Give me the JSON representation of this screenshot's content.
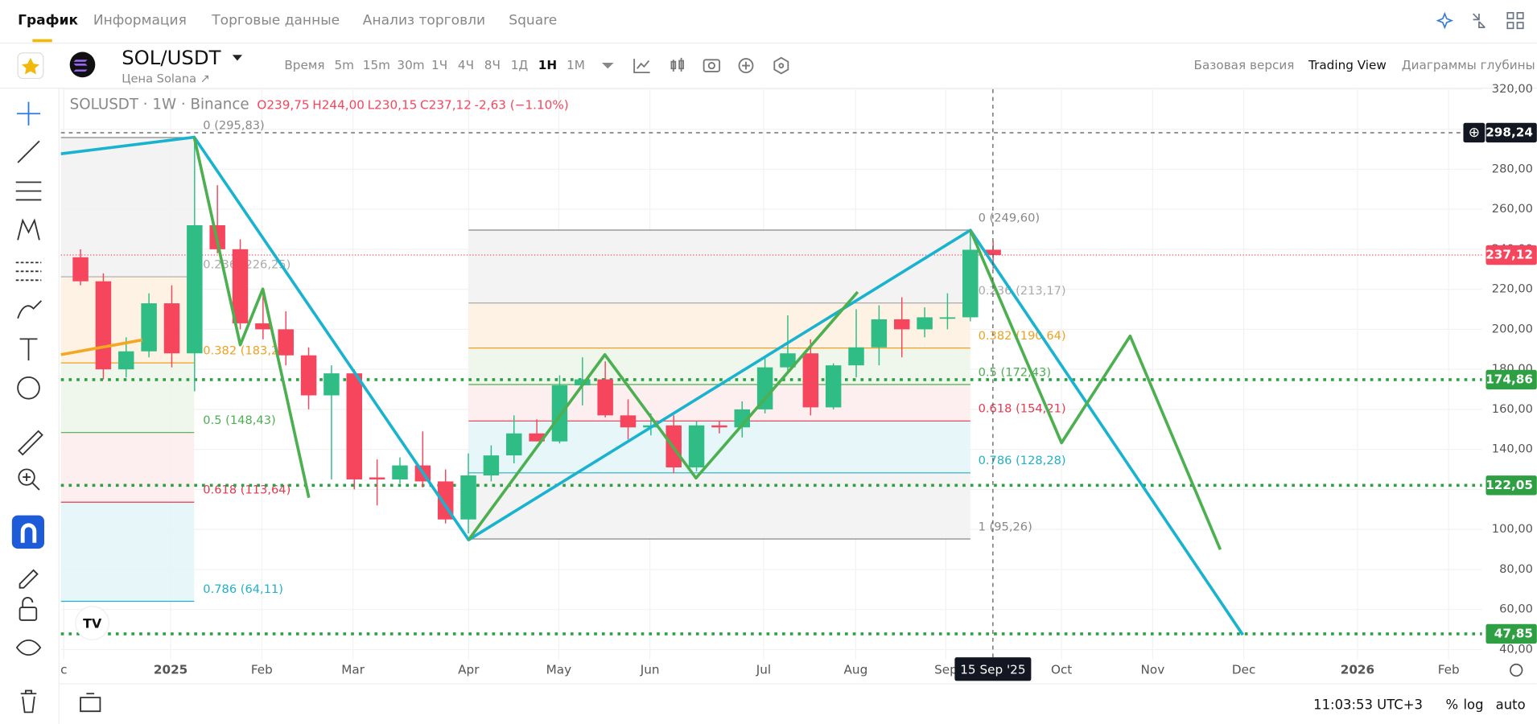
{
  "tabs": [
    "График",
    "Информация",
    "Торговые данные",
    "Анализ торговли",
    "Square"
  ],
  "symbol": {
    "pair": "SOL/USDT",
    "subtitle": "Цена Solana ↗"
  },
  "intervals": [
    "Время",
    "5m",
    "15m",
    "30m",
    "1Ч",
    "4Ч",
    "8Ч",
    "1Д",
    "1Н",
    "1М"
  ],
  "views": [
    "Базовая версия",
    "Trading View",
    "Диаграммы глубины"
  ],
  "chart": {
    "type": "candlestick",
    "legend": {
      "name": "SOLUSDT · 1W · Binance",
      "open": "O239,75",
      "high": "H244,00",
      "low": "L230,15",
      "close": "C237,12",
      "change": "-2,63 (−1.10%)"
    },
    "ylim": [
      40,
      320
    ],
    "yticks": [
      {
        "value": 40,
        "label": "40,00"
      },
      {
        "value": 60,
        "label": "60,00"
      },
      {
        "value": 80,
        "label": "80,00"
      },
      {
        "value": 100,
        "label": "100,00"
      },
      {
        "value": 120,
        "label": "120,00"
      },
      {
        "value": 140,
        "label": "140,00"
      },
      {
        "value": 160,
        "label": "160,00"
      },
      {
        "value": 180,
        "label": "180,00"
      },
      {
        "value": 200,
        "label": "200,00"
      },
      {
        "value": 220,
        "label": "220,00"
      },
      {
        "value": 240,
        "label": "240,00"
      },
      {
        "value": 260,
        "label": "260,00"
      },
      {
        "value": 280,
        "label": "280,00"
      },
      {
        "value": 300,
        "label": "300,00"
      },
      {
        "value": 320,
        "label": "320,00"
      }
    ],
    "xlabels": [
      "c",
      "2025",
      "Feb",
      "Mar",
      "Apr",
      "May",
      "Jun",
      "Jul",
      "Aug",
      "Sep",
      "Oct",
      "Nov",
      "Dec",
      "2026",
      "Feb"
    ],
    "crosshair": {
      "price": {
        "value": 298.24,
        "label": "298,24"
      },
      "date": "15 Sep '25"
    },
    "last_price": {
      "value": 237.12,
      "label": "237,12"
    },
    "levels": [
      {
        "value": 174.86,
        "label": "174,86"
      },
      {
        "value": 122.05,
        "label": "122,05"
      },
      {
        "value": 47.85,
        "label": "47,85"
      }
    ],
    "up_color": "#2fbd85",
    "down_color": "#f6465d",
    "candles": [
      [
        236,
        240,
        222,
        224
      ],
      [
        224,
        228,
        175,
        180
      ],
      [
        180,
        196,
        176,
        189
      ],
      [
        189,
        218,
        186,
        213
      ],
      [
        213,
        222,
        181,
        188
      ],
      [
        188,
        296,
        169,
        252
      ],
      [
        252,
        272,
        238,
        240
      ],
      [
        240,
        245,
        200,
        203
      ],
      [
        203,
        218,
        195,
        200
      ],
      [
        200,
        209,
        182,
        187
      ],
      [
        187,
        191,
        160,
        167
      ],
      [
        167,
        182,
        125,
        178
      ],
      [
        178,
        180,
        120,
        125
      ],
      [
        126,
        135,
        112,
        125
      ],
      [
        125,
        136,
        123,
        132
      ],
      [
        132,
        149,
        121,
        124
      ],
      [
        124,
        130,
        103,
        105
      ],
      [
        105,
        138,
        98,
        127
      ],
      [
        127,
        142,
        124,
        137
      ],
      [
        137,
        157,
        133,
        148
      ],
      [
        148,
        155,
        144,
        144
      ],
      [
        144,
        177,
        143,
        172
      ],
      [
        172,
        186,
        162,
        175
      ],
      [
        175,
        184,
        156,
        157
      ],
      [
        157,
        165,
        145,
        151
      ],
      [
        151,
        158,
        147,
        152
      ],
      [
        152,
        157,
        128,
        131
      ],
      [
        131,
        154,
        129,
        152
      ],
      [
        152,
        154,
        148,
        151
      ],
      [
        151,
        164,
        146,
        160
      ],
      [
        160,
        186,
        158,
        181
      ],
      [
        181,
        207,
        179,
        188
      ],
      [
        188,
        195,
        157,
        161
      ],
      [
        161,
        183,
        160,
        182
      ],
      [
        182,
        210,
        176,
        191
      ],
      [
        191,
        212,
        182,
        205
      ],
      [
        205,
        216,
        186,
        200
      ],
      [
        200,
        211,
        196,
        206
      ],
      [
        206,
        218,
        200,
        206
      ],
      [
        206,
        250,
        204,
        239.75
      ],
      [
        239.75,
        244,
        230.15,
        237.12
      ]
    ],
    "fib_left": [
      {
        "label": "0 (295,83)",
        "value": 295.83,
        "color": "#888888",
        "zone": "#f2f2f2"
      },
      {
        "label": "0.236 (226,25)",
        "value": 226.25,
        "color": "#aaaaaa",
        "zone": "#fdf1e0"
      },
      {
        "label": "0.382 (183,22)",
        "value": 183.22,
        "color": "#f0a020",
        "zone": "#edf6ea"
      },
      {
        "label": "0.5 (148,43)",
        "value": 148.43,
        "color": "#4caf50",
        "zone": "#fdecee"
      },
      {
        "label": "0.618 (113,64)",
        "value": 113.64,
        "color": "#e53950",
        "zone": "#e4f5f8"
      },
      {
        "label": "0.786 (64,11)",
        "value": 64.11,
        "color": "#22b0c8",
        "zone": "#f2f2f2"
      }
    ],
    "fib_right": [
      {
        "label": "0 (249,60)",
        "value": 249.6,
        "color": "#888888",
        "zone": "#f2f2f2"
      },
      {
        "label": "0.236 (213,17)",
        "value": 213.17,
        "color": "#aaaaaa",
        "zone": "#fdf1e0"
      },
      {
        "label": "0.382 (190,64)",
        "value": 190.64,
        "color": "#f0a020",
        "zone": "#edf6ea"
      },
      {
        "label": "0.5 (172,43)",
        "value": 172.43,
        "color": "#4caf50",
        "zone": "#fdecee"
      },
      {
        "label": "0.618 (154,21)",
        "value": 154.21,
        "color": "#e53950",
        "zone": "#e4f5f8"
      },
      {
        "label": "0.786 (128,28)",
        "value": 128.28,
        "color": "#22b0c8",
        "zone": "#f2f2f2"
      },
      {
        "label": "1 (95,26)",
        "value": 95.26,
        "color": "#888888",
        "zone": "#f2f2f2"
      }
    ]
  },
  "status": {
    "time": "11:03:53 UTC+3",
    "percent": "%",
    "log": "log",
    "auto": "auto"
  }
}
